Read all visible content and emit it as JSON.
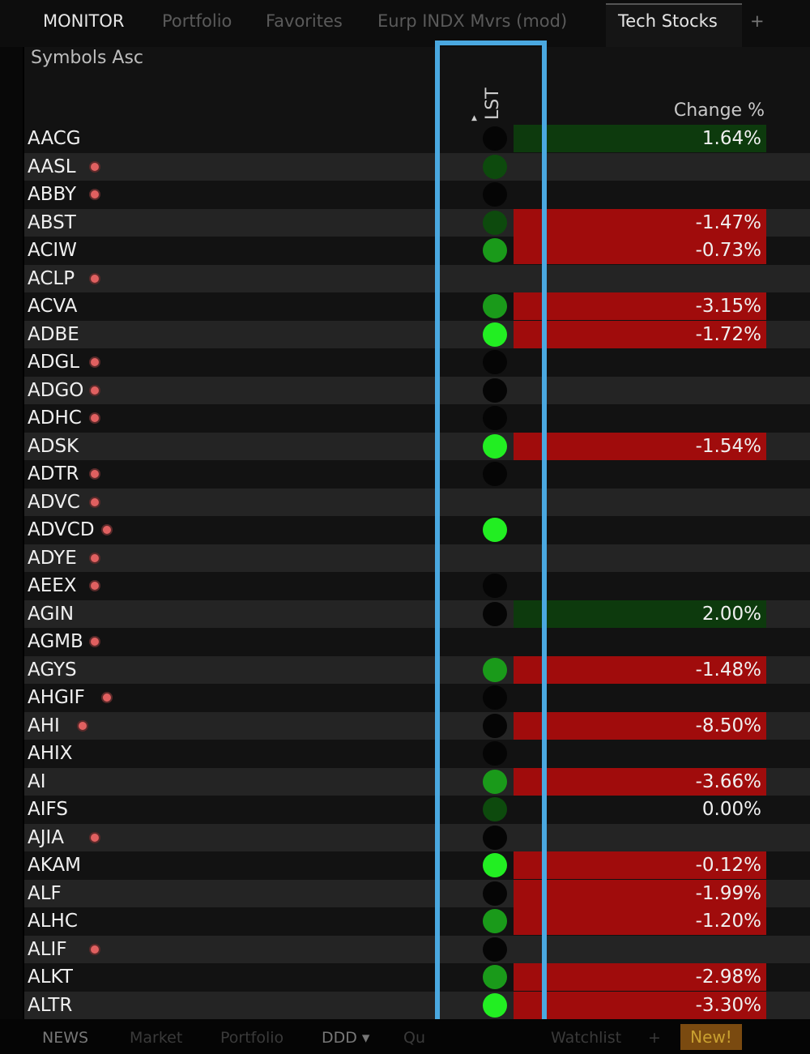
{
  "tabs": {
    "items": [
      "MONITOR",
      "Portfolio",
      "Favorites",
      "Eurp INDX Mvrs (mod)",
      "Tech Stocks"
    ],
    "add": "+"
  },
  "sort_label": "Symbols Asc",
  "columns": {
    "lst": "LST",
    "change": "Change %"
  },
  "colors": {
    "red": "#a00c0c",
    "green": "#0d3a0d",
    "dot_dark": "#0d4a0d",
    "dot_mid": "#1a9a1a",
    "dot_bright": "#22ee22",
    "highlight": "#4aa8e0"
  },
  "rows": [
    {
      "symbol": "AACG",
      "flag": false,
      "dot": "black",
      "change": "1.64%",
      "dir": "up"
    },
    {
      "symbol": "AASL",
      "flag": true,
      "dot": "dark",
      "change": "",
      "dir": ""
    },
    {
      "symbol": "ABBY",
      "flag": true,
      "dot": "black",
      "change": "",
      "dir": ""
    },
    {
      "symbol": "ABST",
      "flag": false,
      "dot": "dark",
      "change": "-1.47%",
      "dir": "down"
    },
    {
      "symbol": "ACIW",
      "flag": false,
      "dot": "mid",
      "change": "-0.73%",
      "dir": "down"
    },
    {
      "symbol": "ACLP",
      "flag": true,
      "dot": "none",
      "change": "",
      "dir": ""
    },
    {
      "symbol": "ACVA",
      "flag": false,
      "dot": "mid",
      "change": "-3.15%",
      "dir": "down"
    },
    {
      "symbol": "ADBE",
      "flag": false,
      "dot": "bright",
      "change": "-1.72%",
      "dir": "down"
    },
    {
      "symbol": "ADGL",
      "flag": true,
      "dot": "black",
      "change": "",
      "dir": ""
    },
    {
      "symbol": "ADGO",
      "flag": true,
      "dot": "black",
      "change": "",
      "dir": ""
    },
    {
      "symbol": "ADHC",
      "flag": true,
      "dot": "black",
      "change": "",
      "dir": ""
    },
    {
      "symbol": "ADSK",
      "flag": false,
      "dot": "bright",
      "change": "-1.54%",
      "dir": "down"
    },
    {
      "symbol": "ADTR",
      "flag": true,
      "dot": "black",
      "change": "",
      "dir": ""
    },
    {
      "symbol": "ADVC",
      "flag": true,
      "dot": "none",
      "change": "",
      "dir": ""
    },
    {
      "symbol": "ADVCD",
      "flag": true,
      "dot": "bright",
      "change": "",
      "dir": ""
    },
    {
      "symbol": "ADYE",
      "flag": true,
      "dot": "none",
      "change": "",
      "dir": ""
    },
    {
      "symbol": "AEEX",
      "flag": true,
      "dot": "black",
      "change": "",
      "dir": ""
    },
    {
      "symbol": "AGIN",
      "flag": false,
      "dot": "black",
      "change": "2.00%",
      "dir": "up"
    },
    {
      "symbol": "AGMB",
      "flag": true,
      "dot": "none",
      "change": "",
      "dir": ""
    },
    {
      "symbol": "AGYS",
      "flag": false,
      "dot": "mid",
      "change": "-1.48%",
      "dir": "down"
    },
    {
      "symbol": "AHGIF",
      "flag": true,
      "dot": "black",
      "change": "",
      "dir": ""
    },
    {
      "symbol": "AHI",
      "flag": true,
      "dot": "black",
      "change": "-8.50%",
      "dir": "down"
    },
    {
      "symbol": "AHIX",
      "flag": false,
      "dot": "black",
      "change": "",
      "dir": ""
    },
    {
      "symbol": "AI",
      "flag": false,
      "dot": "mid",
      "change": "-3.66%",
      "dir": "down"
    },
    {
      "symbol": "AIFS",
      "flag": false,
      "dot": "dark",
      "change": "0.00%",
      "dir": ""
    },
    {
      "symbol": "AJIA",
      "flag": true,
      "dot": "black",
      "change": "",
      "dir": ""
    },
    {
      "symbol": "AKAM",
      "flag": false,
      "dot": "bright",
      "change": "-0.12%",
      "dir": "down"
    },
    {
      "symbol": "ALF",
      "flag": false,
      "dot": "black",
      "change": "-1.99%",
      "dir": "down"
    },
    {
      "symbol": "ALHC",
      "flag": false,
      "dot": "mid",
      "change": "-1.20%",
      "dir": "down"
    },
    {
      "symbol": "ALIF",
      "flag": true,
      "dot": "black",
      "change": "",
      "dir": ""
    },
    {
      "symbol": "ALKT",
      "flag": false,
      "dot": "mid",
      "change": "-2.98%",
      "dir": "down"
    },
    {
      "symbol": "ALTR",
      "flag": false,
      "dot": "bright",
      "change": "-3.30%",
      "dir": "down"
    }
  ],
  "bottom_tabs": [
    "NEWS",
    "Market",
    "Portfolio",
    "DDD ▾",
    "Qu",
    "Watchlist",
    "+"
  ],
  "new_badge": "New!"
}
